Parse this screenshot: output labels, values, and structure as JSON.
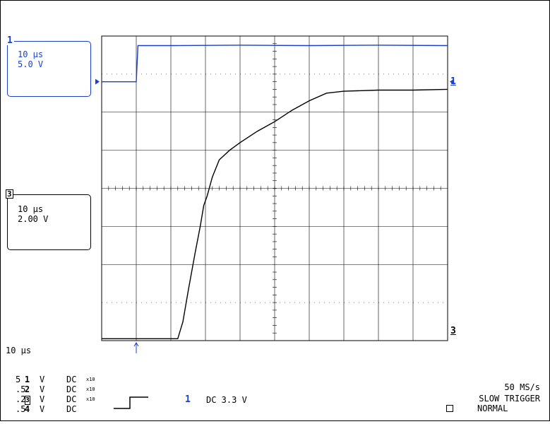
{
  "channel_boxes": [
    {
      "number": "1",
      "timebase": "10 µs",
      "scale": "5.0 V",
      "color": "#1a3fd0"
    },
    {
      "number": "3",
      "timebase": "10 µs",
      "scale": "2.00 V",
      "color": "#000000"
    }
  ],
  "right_markers": {
    "ch1": "1",
    "ch3": "3"
  },
  "timebase_readout": "10 µs",
  "channel_settings": [
    {
      "num": "1",
      "volts": "5",
      "unit": "V",
      "coupling": "DC",
      "probe": ""
    },
    {
      "num": "2",
      "volts": ".5",
      "unit": "V",
      "coupling": "DC",
      "probe": "x10"
    },
    {
      "num": "3",
      "volts": ".2",
      "unit": "V",
      "coupling": "DC",
      "probe": "x10"
    },
    {
      "num": "4",
      "volts": ".5",
      "unit": "V",
      "coupling": "DC",
      "probe": "x10"
    }
  ],
  "trigger": {
    "source": "1",
    "coupling_level": "DC 3.3 V",
    "sample_rate": "50 MS/s",
    "mode": "SLOW TRIGGER",
    "state": "NORMAL"
  },
  "colors": {
    "ch1": "#1a3fd0",
    "ch3": "#000000",
    "grid": "#000000",
    "background": "#ffffff"
  },
  "chart_data": {
    "type": "line",
    "grid": {
      "x_divisions": 10,
      "y_divisions": 8
    },
    "x_unit_per_div": "10 µs",
    "series": [
      {
        "name": "1",
        "scale_per_div": "5.0 V",
        "ground_div": 6.8,
        "x": [
          0,
          0.9,
          1.0,
          1.05,
          2,
          4,
          6,
          8,
          10
        ],
        "y": [
          6.8,
          6.8,
          6.8,
          7.75,
          7.75,
          7.76,
          7.75,
          7.76,
          7.75
        ]
      },
      {
        "name": "3",
        "scale_per_div": "2.00 V",
        "ground_div": 3.8,
        "x": [
          0,
          1.0,
          2.2,
          2.35,
          2.5,
          2.7,
          2.85,
          2.95,
          3.05,
          3.2,
          3.4,
          3.7,
          4.0,
          4.5,
          5.0,
          5.5,
          6.0,
          6.5,
          7.0,
          8.0,
          9.0,
          10.0
        ],
        "y": [
          0.05,
          0.05,
          0.05,
          0.5,
          1.3,
          2.3,
          3.0,
          3.55,
          3.8,
          4.3,
          4.75,
          5.0,
          5.2,
          5.5,
          5.75,
          6.05,
          6.3,
          6.5,
          6.55,
          6.58,
          6.58,
          6.6
        ]
      }
    ]
  }
}
